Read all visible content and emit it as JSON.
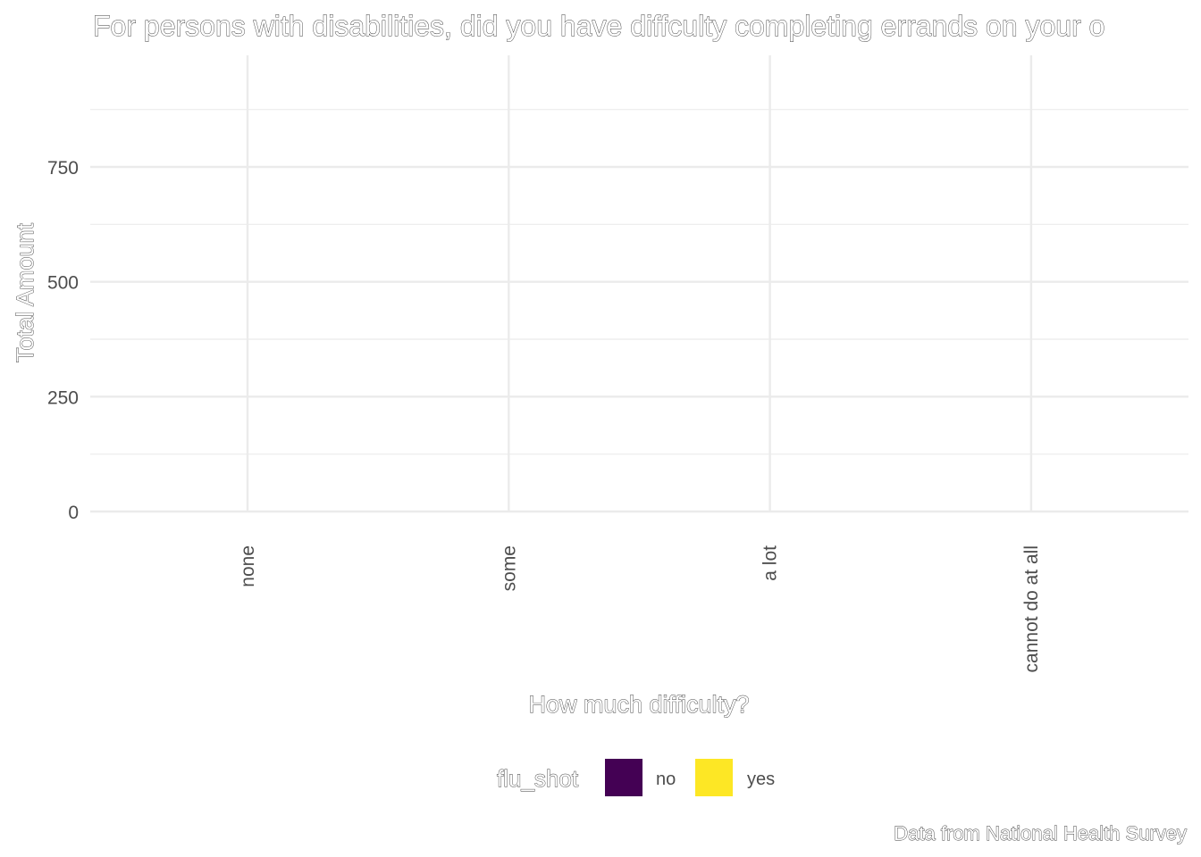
{
  "chart_data": {
    "type": "bar",
    "title": "For persons with disabilities, did you have diffculty completing errands on your o",
    "xlabel": "How much difficulty?",
    "ylabel": "Total Amount",
    "caption": "Data from National Health Survey",
    "categories": [
      "none",
      "some",
      "a lot",
      "cannot do at all"
    ],
    "y_ticks": [
      0,
      250,
      500,
      750
    ],
    "ylim": [
      0,
      900
    ],
    "grid": true,
    "series": [
      {
        "name": "no",
        "color": "#440154",
        "values": [
          0,
          0,
          0,
          0
        ]
      },
      {
        "name": "yes",
        "color": "#FDE725",
        "values": [
          0,
          0,
          0,
          0
        ]
      }
    ],
    "legend": {
      "title": "flu_shot",
      "position": "bottom"
    }
  }
}
